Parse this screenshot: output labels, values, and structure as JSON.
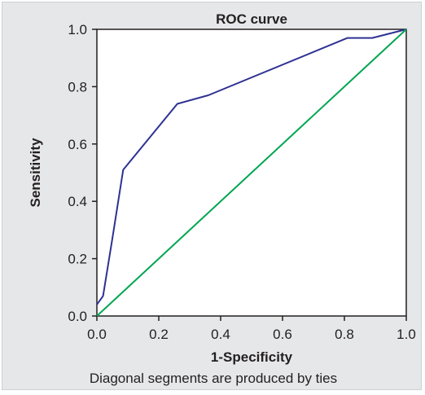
{
  "chart_data": {
    "type": "line",
    "title": "ROC curve",
    "xlabel": "1-Specificity",
    "ylabel": "Sensitivity",
    "footnote": "Diagonal segments are produced by ties",
    "xlim": [
      0,
      1
    ],
    "ylim": [
      0,
      1
    ],
    "xticks": [
      "0.0",
      "0.2",
      "0.4",
      "0.6",
      "0.8",
      "1.0"
    ],
    "yticks": [
      "0.0",
      "0.2",
      "0.4",
      "0.6",
      "0.8",
      "1.0"
    ],
    "grid": false,
    "series": [
      {
        "color": "#2e3192",
        "points": [
          [
            0.0,
            0.04
          ],
          [
            0.02,
            0.07
          ],
          [
            0.05,
            0.27
          ],
          [
            0.085,
            0.51
          ],
          [
            0.26,
            0.74
          ],
          [
            0.36,
            0.77
          ],
          [
            0.81,
            0.97
          ],
          [
            0.89,
            0.97
          ],
          [
            1.0,
            1.0
          ]
        ]
      },
      {
        "color": "#00a651",
        "points": [
          [
            0.0,
            0.0
          ],
          [
            1.0,
            1.0
          ]
        ]
      }
    ]
  }
}
